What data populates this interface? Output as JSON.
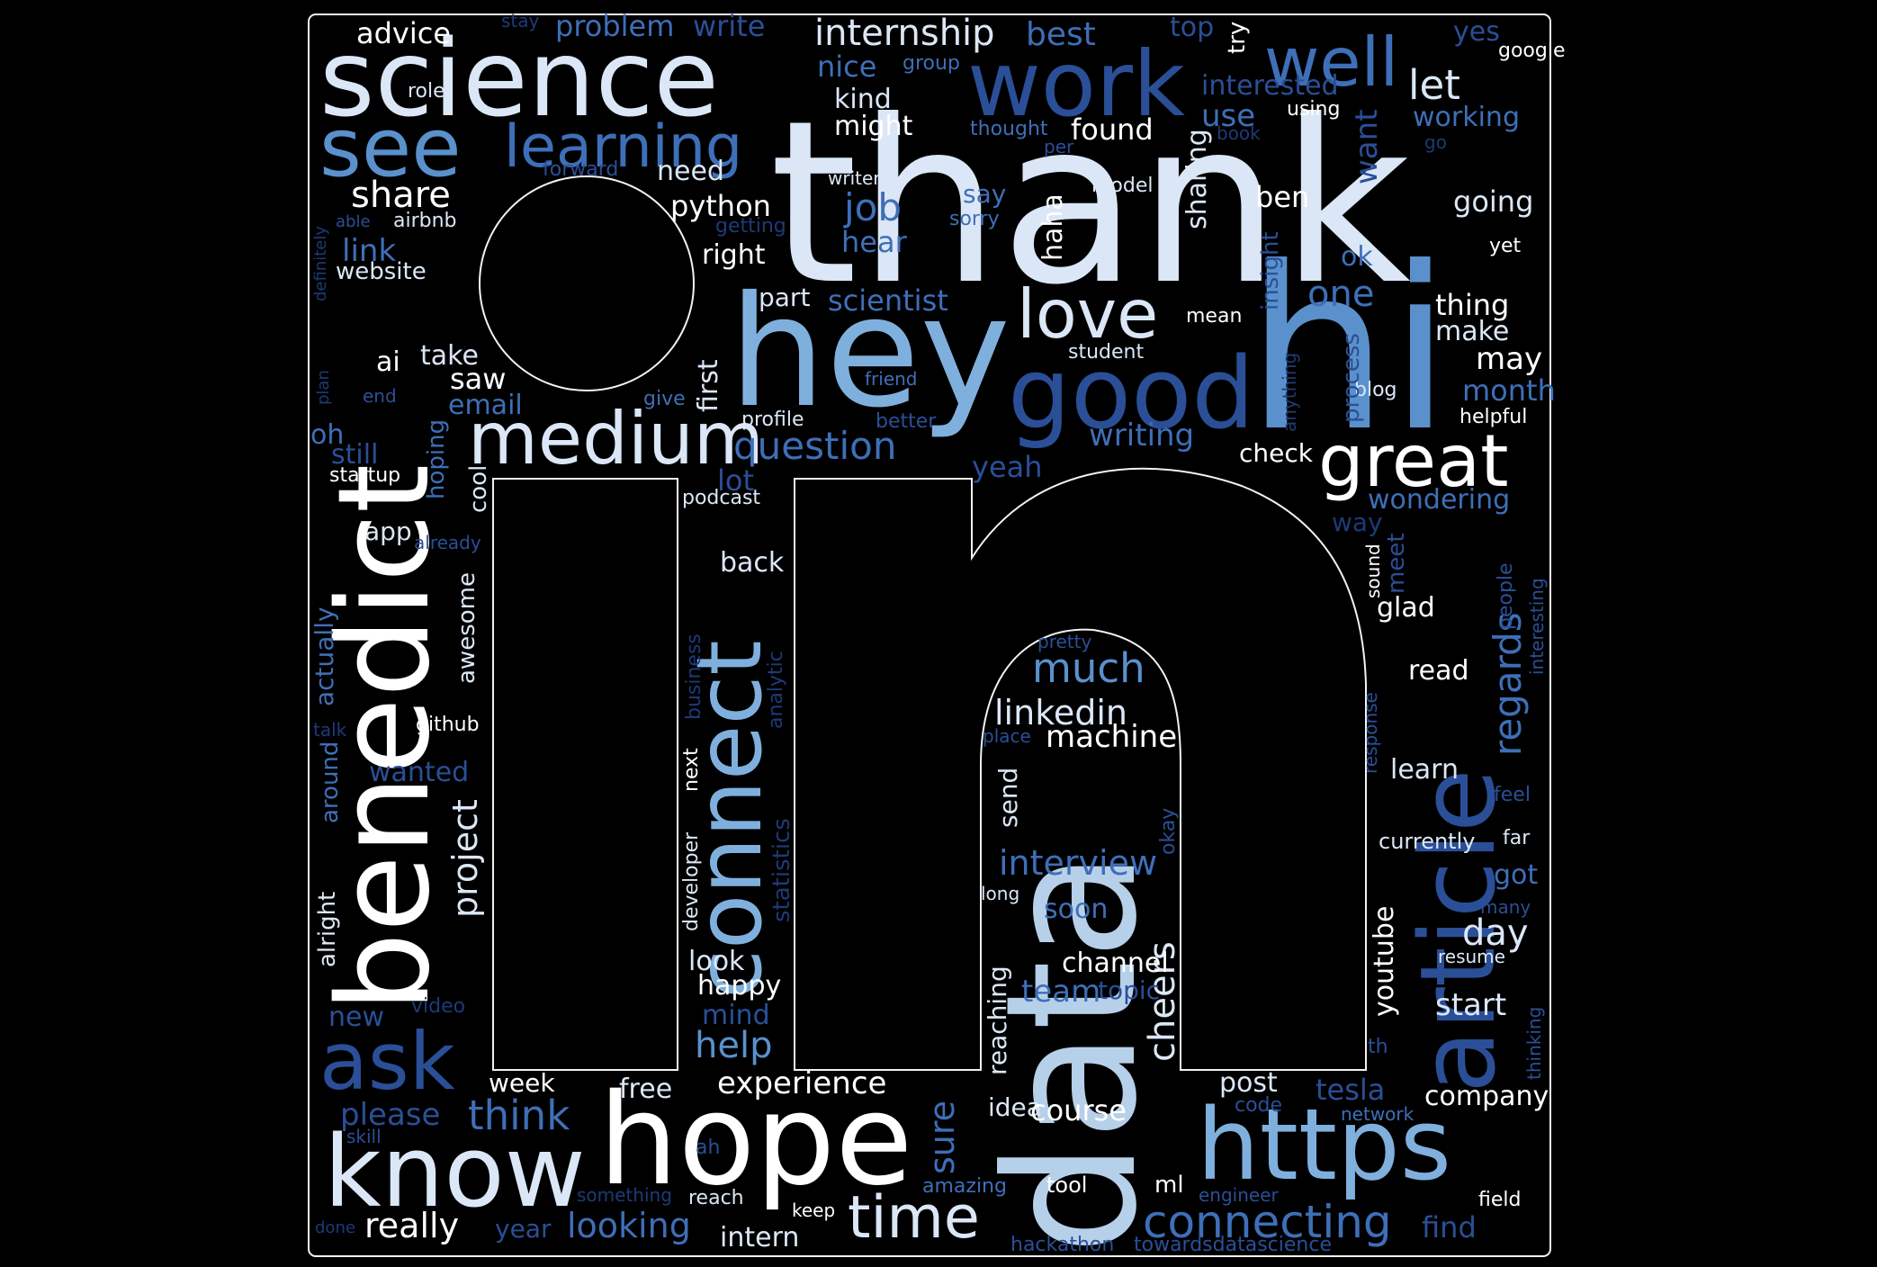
{
  "colors": {
    "background": "#000000",
    "outline": "#f2f2f2",
    "palette": [
      "#ffffff",
      "#dbe7f6",
      "#b7d0ea",
      "#7fb0dd",
      "#5a91cc",
      "#3e6fb8",
      "#2a4f97",
      "#1d3a78"
    ]
  },
  "words": [
    "thank",
    "hi",
    "hey",
    "data",
    "benedict",
    "science",
    "hope",
    "https",
    "know",
    "good",
    "work",
    "article",
    "connect",
    "medium",
    "see",
    "ask",
    "love",
    "great",
    "well",
    "learning",
    "time",
    "connecting",
    "internship",
    "question",
    "much",
    "linkedin",
    "interview",
    "machine",
    "cheers",
    "think",
    "really",
    "project",
    "looking",
    "regards",
    "experience",
    "help",
    "share",
    "advice",
    "problem",
    "write",
    "best",
    "top",
    "try",
    "yes",
    "google",
    "nice",
    "group",
    "kind",
    "might",
    "interested",
    "use",
    "let",
    "working",
    "going",
    "say",
    "sorry",
    "ben",
    "haha",
    "sharing",
    "want",
    "job",
    "hear",
    "python",
    "need",
    "forward",
    "role",
    "airbnb",
    "able",
    "link",
    "website",
    "right",
    "part",
    "scientist",
    "thing",
    "make",
    "may",
    "month",
    "one",
    "mean",
    "student",
    "insight",
    "ok",
    "blog",
    "helpful",
    "process",
    "anything",
    "take",
    "saw",
    "email",
    "ai",
    "still",
    "startup",
    "oh",
    "hoping",
    "cool",
    "first",
    "profile",
    "better",
    "friend",
    "give",
    "writing",
    "yeah",
    "check",
    "wondering",
    "lot",
    "podcast",
    "back",
    "app",
    "already",
    "awesome",
    "actually",
    "alright",
    "around",
    "github",
    "talk",
    "wanted",
    "statistics",
    "analytic",
    "business",
    "developer",
    "next",
    "look",
    "happy",
    "mind",
    "team",
    "topic",
    "channel",
    "reaching",
    "soon",
    "okay",
    "long",
    "send",
    "place",
    "pretty",
    "glad",
    "sound",
    "meet",
    "read",
    "learn",
    "response",
    "feel",
    "currently",
    "far",
    "got",
    "many",
    "day",
    "youtube",
    "resume",
    "start",
    "thinking",
    "interesting",
    "people",
    "post",
    "code",
    "tesla",
    "company",
    "network",
    "sure",
    "idea",
    "course",
    "free",
    "week",
    "please",
    "skill",
    "ah",
    "something",
    "reach",
    "keep",
    "amazing",
    "tool",
    "ml",
    "engineer",
    "field",
    "find",
    "intern",
    "year",
    "done",
    "new",
    "video",
    "towardsdatascience",
    "hackathon",
    "th",
    "definitely",
    "plan",
    "end",
    "using",
    "thought",
    "per",
    "book",
    "go",
    "writer",
    "model",
    "stay",
    "getting",
    "found",
    "way",
    "yet"
  ]
}
